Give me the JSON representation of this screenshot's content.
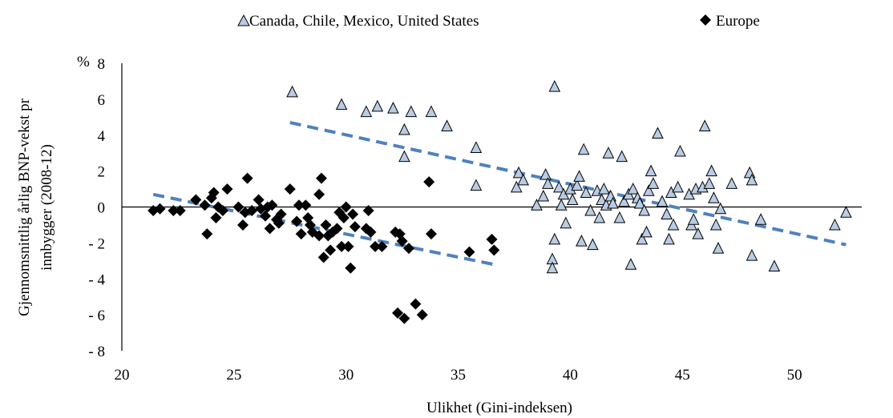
{
  "chart_data": {
    "type": "scatter",
    "title": "",
    "xlabel": "Ulikhet (Gini-indeksen)",
    "ylabel": "Gjennomsnittlig årlig BNP-vekst pr innbygger (2008-12)",
    "ylabel_lines": [
      "Gjennomsnittlig årlig BNP-vekst pr",
      "innbygger (2008-12)"
    ],
    "yunit": "%",
    "xlim": [
      20,
      53
    ],
    "ylim": [
      -8,
      8
    ],
    "xticks": [
      20,
      25,
      30,
      35,
      40,
      45,
      50
    ],
    "yticks": [
      -8,
      -6,
      -4,
      -2,
      0,
      2,
      4,
      6,
      8
    ],
    "ytick_labels": [
      "- 8",
      "- 6",
      "- 4",
      "- 2",
      "0",
      "2",
      "4",
      "6",
      "8"
    ],
    "legend_position": "top",
    "series": [
      {
        "name": "Canada, Chile, Mexico, United States",
        "marker": "triangle",
        "color": "#b8cce4",
        "edge_color": "#000000",
        "points": [
          [
            27.6,
            6.4
          ],
          [
            29.8,
            5.7
          ],
          [
            30.9,
            5.3
          ],
          [
            31.4,
            5.6
          ],
          [
            32.1,
            5.5
          ],
          [
            32.9,
            5.3
          ],
          [
            32.6,
            4.3
          ],
          [
            32.6,
            2.8
          ],
          [
            33.8,
            5.3
          ],
          [
            34.5,
            4.5
          ],
          [
            35.8,
            3.3
          ],
          [
            35.8,
            1.2
          ],
          [
            37.6,
            1.1
          ],
          [
            37.7,
            1.9
          ],
          [
            37.9,
            1.5
          ],
          [
            38.5,
            0.1
          ],
          [
            38.8,
            0.6
          ],
          [
            38.9,
            1.8
          ],
          [
            39.0,
            1.3
          ],
          [
            39.2,
            -2.9
          ],
          [
            39.2,
            -3.4
          ],
          [
            39.3,
            -1.8
          ],
          [
            39.3,
            6.7
          ],
          [
            39.5,
            1.1
          ],
          [
            39.6,
            0.1
          ],
          [
            39.7,
            0.7
          ],
          [
            39.8,
            -0.9
          ],
          [
            40.0,
            1.0
          ],
          [
            40.1,
            0.4
          ],
          [
            40.3,
            1.2
          ],
          [
            40.4,
            1.7
          ],
          [
            40.5,
            -1.9
          ],
          [
            40.6,
            3.2
          ],
          [
            40.7,
            0.8
          ],
          [
            40.9,
            -0.2
          ],
          [
            41.0,
            -2.1
          ],
          [
            41.2,
            0.9
          ],
          [
            41.3,
            -0.6
          ],
          [
            41.4,
            0.4
          ],
          [
            41.5,
            1.0
          ],
          [
            41.6,
            0.1
          ],
          [
            41.7,
            3.0
          ],
          [
            41.8,
            0.6
          ],
          [
            41.9,
            0.2
          ],
          [
            42.2,
            -0.6
          ],
          [
            42.3,
            2.8
          ],
          [
            42.4,
            0.3
          ],
          [
            42.6,
            0.7
          ],
          [
            42.7,
            -3.2
          ],
          [
            42.8,
            1.0
          ],
          [
            43.0,
            0.5
          ],
          [
            43.1,
            0.2
          ],
          [
            43.2,
            -1.8
          ],
          [
            43.3,
            -0.2
          ],
          [
            43.4,
            -1.4
          ],
          [
            43.5,
            0.9
          ],
          [
            43.6,
            2.0
          ],
          [
            43.7,
            1.3
          ],
          [
            43.9,
            4.1
          ],
          [
            44.1,
            0.3
          ],
          [
            44.3,
            -0.4
          ],
          [
            44.4,
            -1.8
          ],
          [
            44.5,
            0.8
          ],
          [
            44.6,
            -1.0
          ],
          [
            44.8,
            1.1
          ],
          [
            44.9,
            3.1
          ],
          [
            45.3,
            0.7
          ],
          [
            45.4,
            -1.0
          ],
          [
            45.5,
            -0.7
          ],
          [
            45.6,
            1.0
          ],
          [
            45.7,
            -1.5
          ],
          [
            45.9,
            1.1
          ],
          [
            46.0,
            4.5
          ],
          [
            46.2,
            1.3
          ],
          [
            46.3,
            2.0
          ],
          [
            46.4,
            0.5
          ],
          [
            46.5,
            -1.0
          ],
          [
            46.6,
            -2.3
          ],
          [
            46.7,
            -0.1
          ],
          [
            47.2,
            1.3
          ],
          [
            48.0,
            1.9
          ],
          [
            48.1,
            1.5
          ],
          [
            48.1,
            -2.7
          ],
          [
            48.5,
            -0.7
          ],
          [
            49.1,
            -3.3
          ],
          [
            51.8,
            -1.0
          ],
          [
            52.3,
            -0.3
          ]
        ]
      },
      {
        "name": "Europe",
        "marker": "diamond",
        "color": "#000000",
        "edge_color": "#000000",
        "points": [
          [
            21.4,
            -0.2
          ],
          [
            21.7,
            -0.1
          ],
          [
            22.3,
            -0.2
          ],
          [
            22.6,
            -0.2
          ],
          [
            23.3,
            0.4
          ],
          [
            23.7,
            0.1
          ],
          [
            23.8,
            -1.5
          ],
          [
            24.0,
            0.5
          ],
          [
            24.1,
            0.8
          ],
          [
            24.2,
            -0.6
          ],
          [
            24.3,
            0.0
          ],
          [
            24.5,
            -0.2
          ],
          [
            24.7,
            1.0
          ],
          [
            25.2,
            0.0
          ],
          [
            25.4,
            -1.0
          ],
          [
            25.5,
            -0.3
          ],
          [
            25.6,
            1.6
          ],
          [
            25.8,
            -0.2
          ],
          [
            26.1,
            0.4
          ],
          [
            26.2,
            -0.1
          ],
          [
            26.4,
            -0.5
          ],
          [
            26.5,
            0.0
          ],
          [
            26.6,
            -1.2
          ],
          [
            26.7,
            0.1
          ],
          [
            26.9,
            -0.7
          ],
          [
            27.0,
            -0.9
          ],
          [
            27.1,
            -0.4
          ],
          [
            27.5,
            1.0
          ],
          [
            27.8,
            -0.8
          ],
          [
            27.9,
            0.1
          ],
          [
            28.0,
            -1.5
          ],
          [
            28.2,
            0.1
          ],
          [
            28.3,
            -0.6
          ],
          [
            28.4,
            -1.0
          ],
          [
            28.5,
            -1.4
          ],
          [
            28.8,
            0.7
          ],
          [
            28.8,
            -1.6
          ],
          [
            28.9,
            1.6
          ],
          [
            29.0,
            -2.8
          ],
          [
            29.1,
            -1.0
          ],
          [
            29.2,
            -1.6
          ],
          [
            29.3,
            -2.4
          ],
          [
            29.4,
            -1.4
          ],
          [
            29.6,
            -1.2
          ],
          [
            29.7,
            -0.3
          ],
          [
            29.8,
            -2.2
          ],
          [
            29.9,
            -0.6
          ],
          [
            30.0,
            0.0
          ],
          [
            30.1,
            -2.2
          ],
          [
            30.2,
            -3.4
          ],
          [
            30.3,
            -0.4
          ],
          [
            30.4,
            -1.1
          ],
          [
            30.9,
            -1.2
          ],
          [
            31.0,
            -0.2
          ],
          [
            31.1,
            -1.4
          ],
          [
            31.3,
            -2.2
          ],
          [
            31.6,
            -2.2
          ],
          [
            32.2,
            -1.4
          ],
          [
            32.3,
            -5.9
          ],
          [
            32.4,
            -1.5
          ],
          [
            32.5,
            -1.9
          ],
          [
            32.6,
            -6.2
          ],
          [
            32.8,
            -2.3
          ],
          [
            33.1,
            -5.4
          ],
          [
            33.4,
            -6.0
          ],
          [
            33.7,
            1.4
          ],
          [
            33.8,
            -1.5
          ],
          [
            35.5,
            -2.5
          ],
          [
            36.5,
            -1.8
          ],
          [
            36.6,
            -2.4
          ]
        ]
      }
    ],
    "trendlines": [
      {
        "series": "Canada, Chile, Mexico, United States",
        "x": [
          27.5,
          52.3
        ],
        "y": [
          4.7,
          -2.1
        ],
        "color": "#4f81bd",
        "style": "dashed"
      },
      {
        "series": "Europe",
        "x": [
          21.4,
          36.6
        ],
        "y": [
          0.7,
          -3.2
        ],
        "color": "#4f81bd",
        "style": "dashed"
      }
    ]
  }
}
